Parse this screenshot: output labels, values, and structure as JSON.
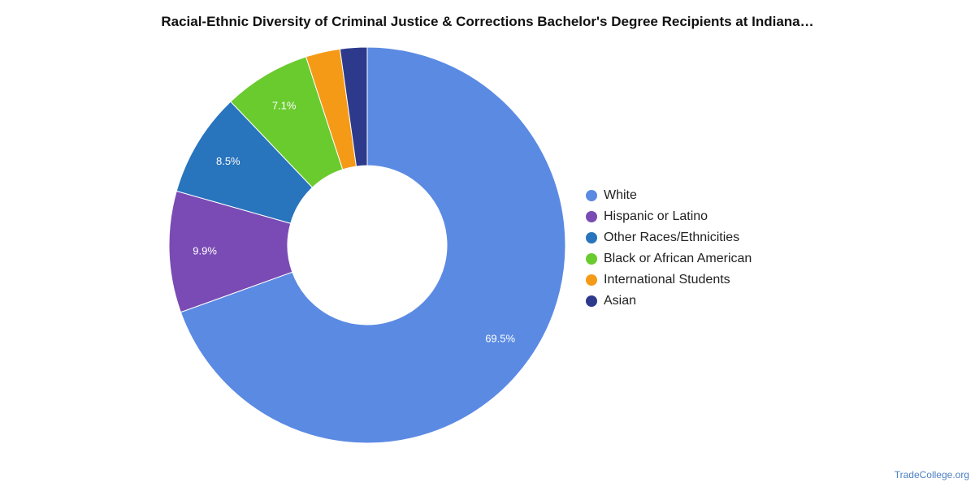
{
  "chart_data": {
    "type": "pie",
    "title": "Racial-Ethnic Diversity of Criminal Justice & Corrections Bachelor's Degree Recipients at Indiana…",
    "categories": [
      "White",
      "Hispanic or Latino",
      "Other Races/Ethnicities",
      "Black or African American",
      "International Students",
      "Asian"
    ],
    "values": [
      69.5,
      9.9,
      8.5,
      7.1,
      2.8,
      2.2
    ],
    "data_labels": [
      "69.5%",
      "9.9%",
      "8.5%",
      "7.1%",
      "",
      ""
    ],
    "colors": [
      "#5b8ae3",
      "#7a4bb4",
      "#2874bd",
      "#6acb2e",
      "#f59a17",
      "#2d3a8c"
    ],
    "legend_placement": "right",
    "donut": true
  },
  "watermark": "TradeCollege.org"
}
